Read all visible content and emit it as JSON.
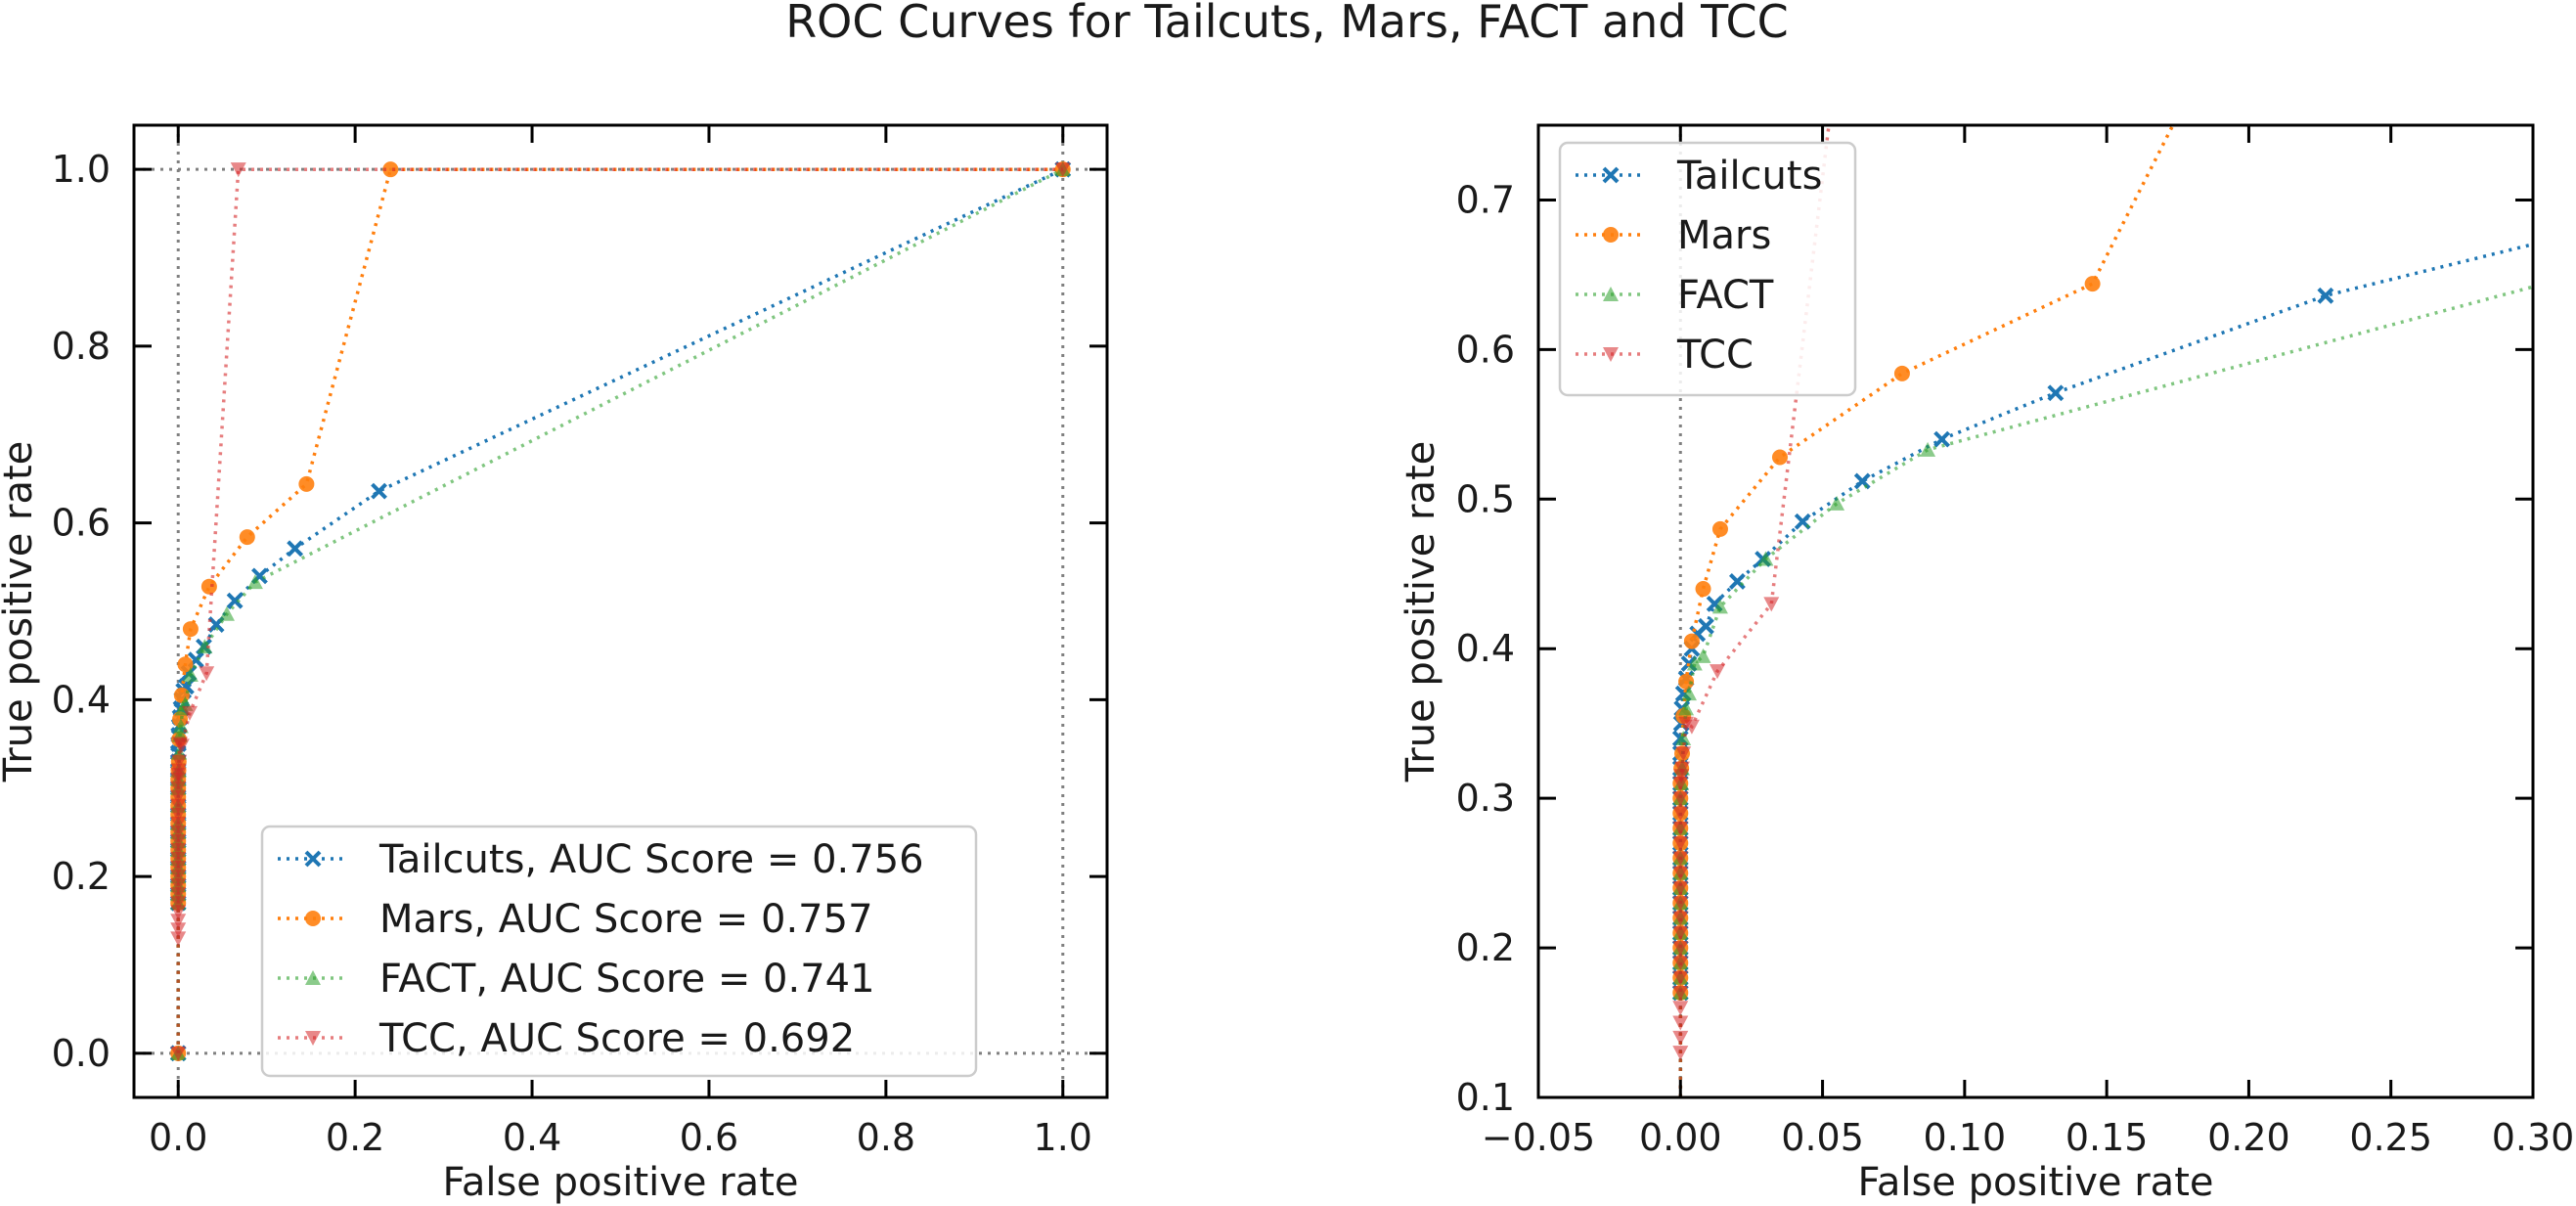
{
  "figure": {
    "title": "ROC Curves for Tailcuts, Mars, FACT and TCC"
  },
  "colors": {
    "tailcuts": "#1f77b4",
    "mars": "#ff7f0e",
    "fact": "#2ca02c",
    "tcc": "#d62728",
    "refline": "#808080"
  },
  "chart_data": [
    {
      "type": "line",
      "panel": "left",
      "title": "",
      "xlabel": "False positive rate",
      "ylabel": "True positive rate",
      "xlim": [
        -0.05,
        1.05
      ],
      "ylim": [
        -0.05,
        1.05
      ],
      "xticks": [
        0.0,
        0.2,
        0.4,
        0.6,
        0.8,
        1.0
      ],
      "yticks": [
        0.0,
        0.2,
        0.4,
        0.6,
        0.8,
        1.0
      ],
      "tick_labels_x": [
        "0.0",
        "0.2",
        "0.4",
        "0.6",
        "0.8",
        "1.0"
      ],
      "tick_labels_y": [
        "0.0",
        "0.2",
        "0.4",
        "0.6",
        "0.8",
        "1.0"
      ],
      "reference_lines": {
        "x": [
          0.0,
          1.0
        ],
        "y": [
          0.0,
          1.0
        ]
      },
      "grid": false,
      "legend": {
        "position": "lower-right",
        "entries": [
          "Tailcuts, AUC Score = 0.756",
          "Mars, AUC Score = 0.757",
          "FACT, AUC Score = 0.741",
          "TCC, AUC Score = 0.692"
        ]
      }
    },
    {
      "type": "line",
      "panel": "right",
      "title": "",
      "xlabel": "False positive rate",
      "ylabel": "True positive rate",
      "xlim": [
        -0.05,
        0.3
      ],
      "ylim": [
        0.1,
        0.75
      ],
      "xticks": [
        -0.05,
        0.0,
        0.05,
        0.1,
        0.15,
        0.2,
        0.25,
        0.3
      ],
      "yticks": [
        0.1,
        0.2,
        0.3,
        0.4,
        0.5,
        0.6,
        0.7
      ],
      "tick_labels_x": [
        "−0.05",
        "0.00",
        "0.05",
        "0.10",
        "0.15",
        "0.20",
        "0.25",
        "0.30"
      ],
      "tick_labels_y": [
        "0.1",
        "0.2",
        "0.3",
        "0.4",
        "0.5",
        "0.6",
        "0.7"
      ],
      "reference_lines": {
        "x": [
          0.0
        ],
        "y": []
      },
      "grid": false,
      "legend": {
        "position": "upper-left",
        "entries": [
          "Tailcuts",
          "Mars",
          "FACT",
          "TCC"
        ]
      }
    }
  ],
  "series": [
    {
      "key": "tailcuts",
      "marker": "x",
      "x": [
        0,
        0,
        0,
        0,
        0,
        0,
        0,
        0,
        0,
        0,
        0,
        0,
        0,
        0,
        0,
        0,
        0,
        0,
        0,
        0.0003,
        0.0005,
        0.001,
        0.002,
        0.003,
        0.004,
        0.006,
        0.009,
        0.012,
        0.02,
        0.029,
        0.043,
        0.064,
        0.092,
        0.132,
        0.227,
        1.0
      ],
      "y": [
        0,
        0.17,
        0.18,
        0.19,
        0.2,
        0.21,
        0.22,
        0.23,
        0.24,
        0.25,
        0.26,
        0.27,
        0.28,
        0.29,
        0.3,
        0.31,
        0.32,
        0.33,
        0.34,
        0.35,
        0.36,
        0.37,
        0.38,
        0.39,
        0.4,
        0.41,
        0.415,
        0.43,
        0.445,
        0.46,
        0.485,
        0.512,
        0.54,
        0.571,
        0.636,
        1.0
      ]
    },
    {
      "key": "mars",
      "marker": "o",
      "x": [
        0,
        0,
        0,
        0,
        0,
        0,
        0,
        0,
        0,
        0,
        0,
        0,
        0,
        0,
        0,
        0,
        0.0003,
        0.0006,
        0.001,
        0.002,
        0.004,
        0.008,
        0.014,
        0.035,
        0.078,
        0.145,
        0.24,
        1.0
      ],
      "y": [
        0,
        0.17,
        0.18,
        0.19,
        0.2,
        0.21,
        0.22,
        0.23,
        0.24,
        0.25,
        0.26,
        0.27,
        0.28,
        0.29,
        0.3,
        0.31,
        0.32,
        0.33,
        0.355,
        0.378,
        0.405,
        0.44,
        0.48,
        0.528,
        0.584,
        0.644,
        1.0,
        1.0
      ]
    },
    {
      "key": "fact",
      "marker": "^",
      "x": [
        0,
        0,
        0,
        0,
        0,
        0,
        0,
        0,
        0,
        0,
        0,
        0,
        0,
        0.0003,
        0.0006,
        0.001,
        0.002,
        0.003,
        0.005,
        0.008,
        0.014,
        0.03,
        0.055,
        0.087,
        1.0
      ],
      "y": [
        0,
        0.17,
        0.18,
        0.19,
        0.2,
        0.21,
        0.22,
        0.23,
        0.24,
        0.25,
        0.26,
        0.28,
        0.3,
        0.31,
        0.32,
        0.34,
        0.36,
        0.37,
        0.39,
        0.395,
        0.428,
        0.46,
        0.497,
        0.533,
        1.0
      ]
    },
    {
      "key": "tcc",
      "marker": "v",
      "x": [
        0,
        0,
        0,
        0,
        0,
        0,
        0,
        0,
        0,
        0,
        0,
        0,
        0,
        0,
        0,
        0,
        0,
        0,
        0,
        0,
        0.0003,
        0.0006,
        0.001,
        0.002,
        0.004,
        0.013,
        0.032,
        0.068,
        1.0
      ],
      "y": [
        0,
        0.13,
        0.14,
        0.15,
        0.16,
        0.17,
        0.18,
        0.19,
        0.2,
        0.21,
        0.22,
        0.23,
        0.24,
        0.25,
        0.26,
        0.27,
        0.28,
        0.29,
        0.3,
        0.31,
        0.315,
        0.32,
        0.33,
        0.35,
        0.348,
        0.385,
        0.43,
        1.0,
        1.0
      ]
    }
  ]
}
